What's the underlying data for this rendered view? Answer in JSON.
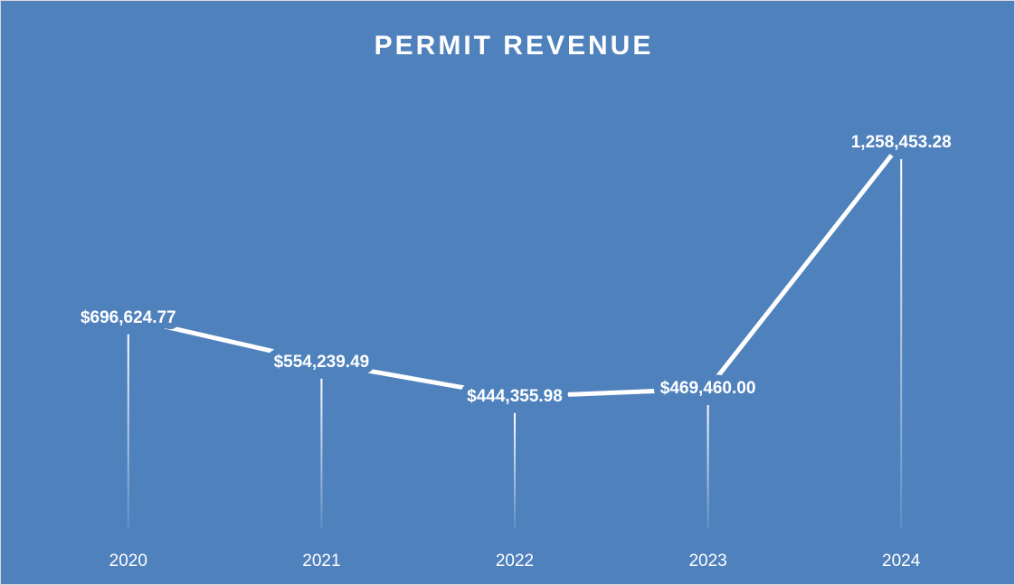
{
  "chart_data": {
    "type": "line",
    "title": "PERMIT REVENUE",
    "categories": [
      "2020",
      "2021",
      "2022",
      "2023",
      "2024"
    ],
    "values": [
      696624.77,
      554239.49,
      444355.98,
      469460.0,
      1258453.28
    ],
    "value_labels": [
      "$696,624.77",
      "$554,239.49",
      "$444,355.98",
      "$469,460.00",
      "1,258,453.28"
    ],
    "color": "#ffffff",
    "background": "#4f81bd",
    "grid": false
  }
}
